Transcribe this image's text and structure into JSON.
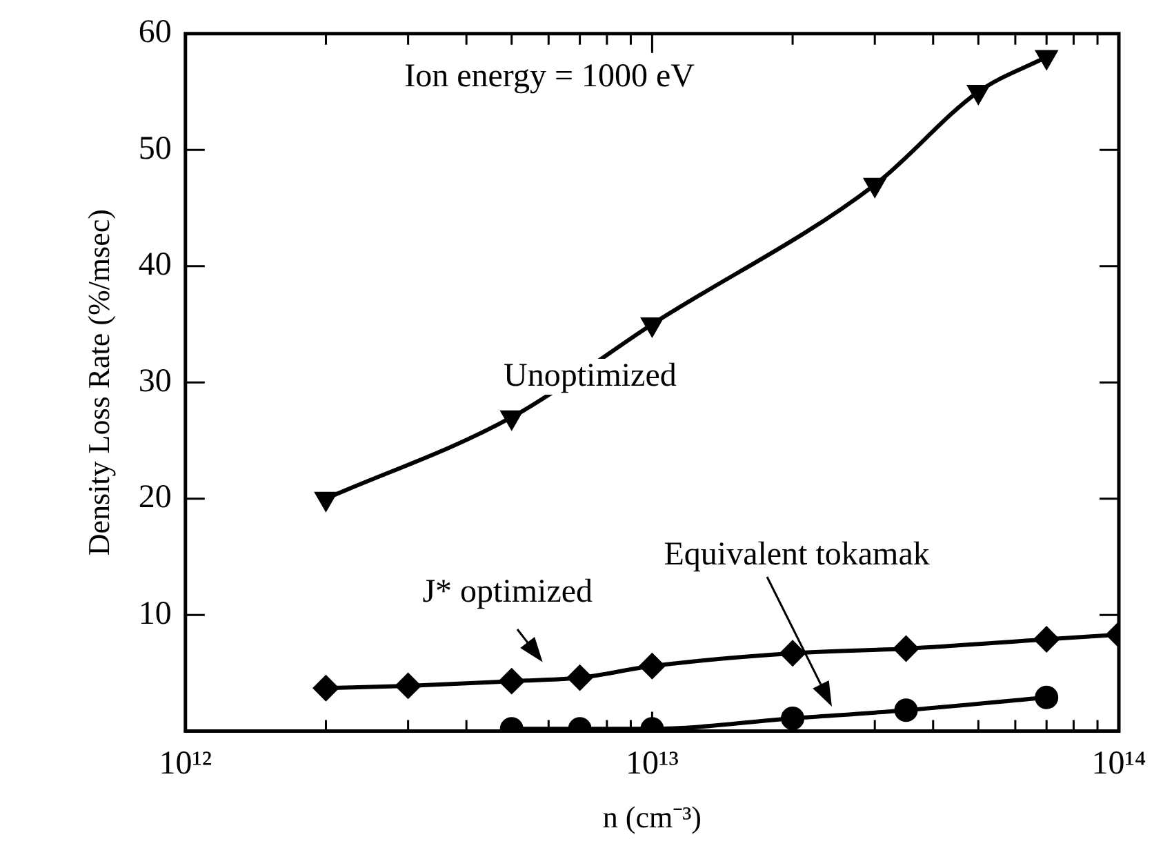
{
  "chart_data": {
    "type": "line",
    "xlabel": "n (cm⁻³)",
    "ylabel": "Density Loss Rate (%/msec)",
    "annotations": [
      "Ion energy = 1000 eV"
    ],
    "log": "x",
    "grid": false,
    "legend": false,
    "line_style": "solid",
    "xlim": [
      1000000000000.0,
      100000000000000.0
    ],
    "ylim": [
      0,
      60
    ],
    "xticks": [
      {
        "value": 1000000000000.0,
        "label": "10¹²"
      },
      {
        "value": 2000000000000.0,
        "label": null
      },
      {
        "value": 3000000000000.0,
        "label": null
      },
      {
        "value": 4000000000000.0,
        "label": null
      },
      {
        "value": 5000000000000.0,
        "label": null
      },
      {
        "value": 6000000000000.0,
        "label": null
      },
      {
        "value": 7000000000000.0,
        "label": null
      },
      {
        "value": 8000000000000.0,
        "label": null
      },
      {
        "value": 9000000000000.0,
        "label": null
      },
      {
        "value": 10000000000000.0,
        "label": "10¹³"
      },
      {
        "value": 20000000000000.0,
        "label": null
      },
      {
        "value": 30000000000000.0,
        "label": null
      },
      {
        "value": 40000000000000.0,
        "label": null
      },
      {
        "value": 50000000000000.0,
        "label": null
      },
      {
        "value": 60000000000000.0,
        "label": null
      },
      {
        "value": 70000000000000.0,
        "label": null
      },
      {
        "value": 80000000000000.0,
        "label": null
      },
      {
        "value": 90000000000000.0,
        "label": null
      },
      {
        "value": 100000000000000.0,
        "label": "10¹⁴"
      }
    ],
    "yticks": [
      10,
      20,
      30,
      40,
      50,
      60
    ],
    "series": [
      {
        "name": "Unoptimized",
        "color": "#000000",
        "marker": "triangle",
        "x": [
          2000000000000.0,
          5000000000000.0,
          10000000000000.0,
          30000000000000.0,
          50000000000000.0,
          70000000000000.0
        ],
        "values": [
          20,
          27,
          35,
          47,
          55,
          58
        ]
      },
      {
        "name": "J* optimized",
        "color": "#000000",
        "marker": "diamond",
        "x": [
          2000000000000.0,
          3000000000000.0,
          5000000000000.0,
          7000000000000.0,
          10000000000000.0,
          20000000000000.0,
          35000000000000.0,
          70000000000000.0,
          100000000000000.0
        ],
        "values": [
          3.7,
          3.9,
          4.3,
          4.6,
          5.6,
          6.7,
          7.1,
          7.9,
          8.3
        ]
      },
      {
        "name": "Equivalent tokamak",
        "color": "#000000",
        "marker": "circle",
        "x": [
          5000000000000.0,
          7000000000000.0,
          10000000000000.0,
          20000000000000.0,
          35000000000000.0,
          70000000000000.0
        ],
        "values": [
          0.2,
          0.2,
          0.2,
          1.1,
          1.8,
          2.9
        ]
      }
    ]
  }
}
